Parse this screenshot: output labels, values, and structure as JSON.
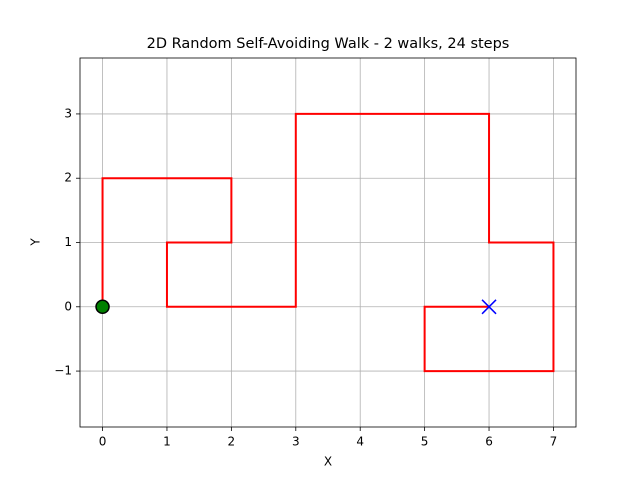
{
  "chart_data": {
    "type": "line",
    "title": "2D Random Self-Avoiding Walk - 2 walks, 24 steps",
    "xlabel": "X",
    "ylabel": "Y",
    "series": [
      {
        "color": "#ff0000",
        "x": [
          0,
          0,
          0,
          1,
          2,
          2,
          1,
          1,
          2,
          3,
          3,
          3,
          3,
          4,
          5,
          6,
          6,
          6,
          7,
          7,
          7,
          6,
          5,
          5,
          6
        ],
        "y": [
          0,
          1,
          2,
          2,
          2,
          1,
          1,
          0,
          0,
          0,
          1,
          2,
          3,
          3,
          3,
          3,
          2,
          1,
          1,
          0,
          -1,
          -1,
          -1,
          0,
          0
        ]
      }
    ],
    "start": {
      "x": 0,
      "y": 0,
      "color": "#008000"
    },
    "end": {
      "x": 6,
      "y": 0,
      "color": "#0000ff"
    },
    "xlim": [
      -0.35,
      7.35
    ],
    "ylim": [
      -1.87,
      3.87
    ],
    "xticks": [
      0,
      1,
      2,
      3,
      4,
      5,
      6,
      7
    ],
    "yticks": [
      {
        "value": -1,
        "label": "−1"
      },
      0,
      1,
      2,
      3
    ],
    "grid": true
  }
}
